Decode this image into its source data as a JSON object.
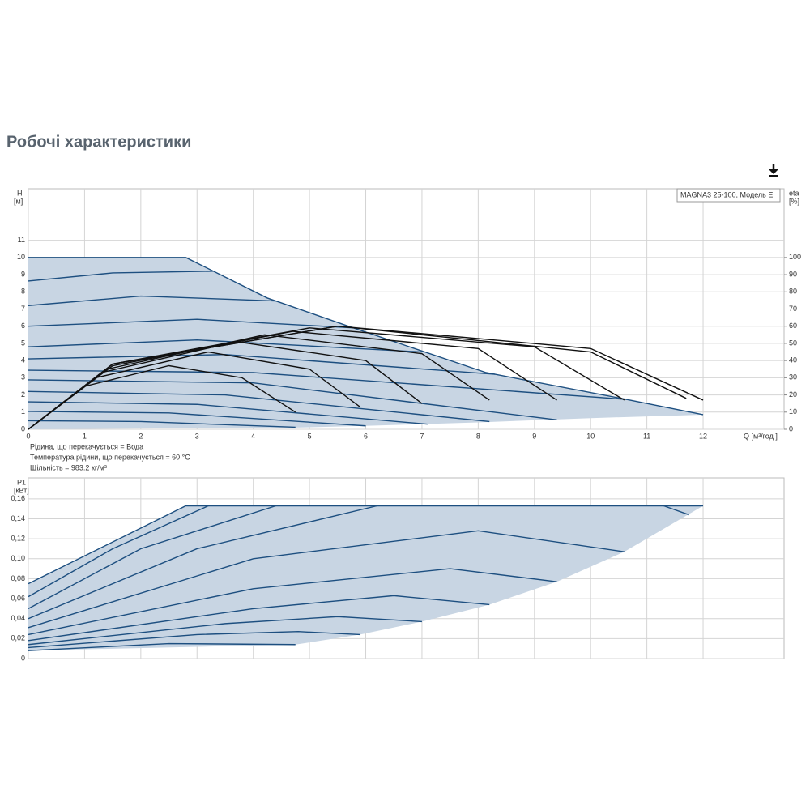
{
  "page_title": "Робочі характеристики",
  "chart_data": [
    {
      "type": "line",
      "title": "MAGNA3 25-100, Модель E",
      "ylabel": "H",
      "ylabel_unit": "[м]",
      "y2label": "eta",
      "y2label_unit": "[%]",
      "xlabel": "Q [м³/год ]",
      "annotations": [
        "Рідина, що перекачується = Вода",
        "Температура рідини, що перекачується = 60 °C",
        "Щільність = 983.2 кг/м³"
      ],
      "xlim": [
        0,
        13.44
      ],
      "ylim": [
        0,
        14
      ],
      "y2lim": [
        0,
        140
      ],
      "xticks": [
        0,
        1,
        2,
        3,
        4,
        5,
        6,
        7,
        8,
        9,
        10,
        11,
        12
      ],
      "yticks": [
        0,
        1,
        2,
        3,
        4,
        5,
        6,
        7,
        8,
        9,
        10,
        11
      ],
      "y2ticks": [
        0,
        10,
        20,
        30,
        40,
        50,
        60,
        70,
        80,
        90,
        100
      ],
      "grid": true,
      "fill_color": "#c8d5e3",
      "edge_color": "#1f5a8c",
      "envelope": {
        "x": [
          0,
          2.8,
          4.25,
          5.69,
          8.14,
          10.56,
          12,
          10,
          8,
          6,
          4.75,
          0
        ],
        "values": [
          10,
          10,
          7.64,
          6.0,
          3.3,
          1.79,
          0.85,
          0.65,
          0.4,
          0.2,
          0.1,
          0
        ]
      },
      "series": [
        {
          "color": "#1d4f80",
          "x": [
            0,
            2.8,
            4.25,
            5.69,
            8.14,
            10.56,
            12
          ],
          "values": [
            10,
            10,
            7.64,
            6.0,
            3.3,
            1.79,
            0.85
          ]
        },
        {
          "color": "#1d4f80",
          "x": [
            0,
            1.5,
            3.3
          ],
          "values": [
            8.63,
            9.1,
            9.2
          ]
        },
        {
          "color": "#1d4f80",
          "x": [
            0,
            2,
            4.4
          ],
          "values": [
            7.2,
            7.75,
            7.47
          ]
        },
        {
          "color": "#1d4f80",
          "x": [
            0,
            3,
            5.8
          ],
          "values": [
            6.0,
            6.4,
            5.9
          ]
        },
        {
          "color": "#1d4f80",
          "x": [
            0,
            3,
            7
          ],
          "values": [
            4.8,
            5.2,
            4.5
          ]
        },
        {
          "color": "#1d4f80",
          "x": [
            0,
            3.5,
            8.3
          ],
          "values": [
            4.1,
            4.35,
            3.2
          ]
        },
        {
          "color": "#1d4f80",
          "x": [
            0,
            4,
            10.6
          ],
          "values": [
            3.44,
            3.3,
            1.75
          ]
        },
        {
          "color": "#1d4f80",
          "x": [
            0,
            4,
            9.4
          ],
          "values": [
            2.88,
            2.7,
            0.55
          ]
        },
        {
          "color": "#1d4f80",
          "x": [
            0,
            3.5,
            8.2
          ],
          "values": [
            2.2,
            2.0,
            0.45
          ]
        },
        {
          "color": "#1d4f80",
          "x": [
            0,
            3,
            7.1
          ],
          "values": [
            1.6,
            1.45,
            0.3
          ]
        },
        {
          "color": "#1d4f80",
          "x": [
            0,
            2.5,
            6.0
          ],
          "values": [
            1.04,
            0.95,
            0.2
          ]
        },
        {
          "color": "#1d4f80",
          "x": [
            0,
            2,
            4.75
          ],
          "values": [
            0.5,
            0.45,
            0.12
          ]
        },
        {
          "color": "#111111",
          "axis": "y2",
          "x": [
            0,
            1,
            2.5,
            3.8,
            4.75
          ],
          "values": [
            0,
            25,
            37,
            30,
            10
          ]
        },
        {
          "color": "#111111",
          "axis": "y2",
          "x": [
            0,
            1.2,
            3.2,
            5,
            5.9
          ],
          "values": [
            0,
            30,
            45,
            35,
            13
          ]
        },
        {
          "color": "#111111",
          "axis": "y2",
          "x": [
            0,
            1.3,
            3.7,
            6,
            7
          ],
          "values": [
            0,
            33,
            51,
            40,
            15
          ]
        },
        {
          "color": "#111111",
          "axis": "y2",
          "x": [
            0,
            1.4,
            4.2,
            7,
            8.2
          ],
          "values": [
            0,
            35,
            55,
            44,
            17
          ]
        },
        {
          "color": "#111111",
          "axis": "y2",
          "x": [
            0,
            1.5,
            4.7,
            8,
            9.4
          ],
          "values": [
            0,
            37,
            57,
            47,
            17
          ]
        },
        {
          "color": "#111111",
          "axis": "y2",
          "x": [
            0,
            1.5,
            5,
            9,
            10.6
          ],
          "values": [
            0,
            38,
            59,
            48,
            17
          ]
        },
        {
          "color": "#111111",
          "axis": "y2",
          "x": [
            0,
            1.5,
            5.5,
            10,
            11.7
          ],
          "values": [
            0,
            38,
            60,
            45,
            18
          ]
        },
        {
          "color": "#111111",
          "axis": "y2",
          "x": [
            0,
            1.5,
            5.5,
            10,
            12
          ],
          "values": [
            0,
            38,
            60,
            47,
            17
          ]
        }
      ]
    },
    {
      "type": "line",
      "ylabel": "P1",
      "ylabel_unit": "[кВт]",
      "xlim": [
        0,
        13.44
      ],
      "ylim": [
        0,
        0.181
      ],
      "xticks": [
        0,
        1,
        2,
        3,
        4,
        5,
        6,
        7,
        8,
        9,
        10,
        11,
        12
      ],
      "yticks": [
        0,
        {
          "value": 0.02,
          "label": "0,02"
        },
        {
          "value": 0.04,
          "label": "0,04"
        },
        {
          "value": 0.06,
          "label": "0,06"
        },
        {
          "value": 0.08,
          "label": "0,08"
        },
        {
          "value": 0.1,
          "label": "0,10"
        },
        {
          "value": 0.12,
          "label": "0,12"
        },
        {
          "value": 0.14,
          "label": "0,14"
        },
        {
          "value": 0.16,
          "label": "0,16"
        }
      ],
      "grid": true,
      "fill_color": "#c8d5e3",
      "edge_color": "#1f5a8c",
      "envelope": {
        "x": [
          0,
          2.8,
          12,
          10.6,
          9.4,
          8.2,
          7.0,
          5.9,
          4.75,
          0
        ],
        "values": [
          0.075,
          0.153,
          0.153,
          0.107,
          0.077,
          0.054,
          0.037,
          0.024,
          0.014,
          0.008
        ]
      },
      "series": [
        {
          "color": "#1d4f80",
          "x": [
            0,
            2.8,
            12
          ],
          "values": [
            0.075,
            0.153,
            0.153
          ]
        },
        {
          "color": "#1d4f80",
          "x": [
            0,
            1.5,
            3.2
          ],
          "values": [
            0.062,
            0.11,
            0.153
          ]
        },
        {
          "color": "#1d4f80",
          "x": [
            0,
            2,
            4.4
          ],
          "values": [
            0.05,
            0.11,
            0.153
          ]
        },
        {
          "color": "#1d4f80",
          "x": [
            0,
            3,
            6.2
          ],
          "values": [
            0.04,
            0.11,
            0.153
          ]
        },
        {
          "color": "#1d4f80",
          "x": [
            0,
            4,
            8,
            10.6
          ],
          "values": [
            0.031,
            0.1,
            0.128,
            0.107
          ]
        },
        {
          "color": "#1d4f80",
          "x": [
            0,
            4,
            7.5,
            9.4
          ],
          "values": [
            0.024,
            0.07,
            0.09,
            0.077
          ]
        },
        {
          "color": "#1d4f80",
          "x": [
            0,
            4,
            6.5,
            8.2
          ],
          "values": [
            0.018,
            0.05,
            0.063,
            0.054
          ]
        },
        {
          "color": "#1d4f80",
          "x": [
            0,
            3.5,
            5.5,
            7.0
          ],
          "values": [
            0.014,
            0.035,
            0.042,
            0.037
          ]
        },
        {
          "color": "#1d4f80",
          "x": [
            0,
            3,
            4.8,
            5.9
          ],
          "values": [
            0.011,
            0.024,
            0.027,
            0.024
          ]
        },
        {
          "color": "#1d4f80",
          "x": [
            0,
            2.5,
            4.75
          ],
          "values": [
            0.008,
            0.015,
            0.014
          ]
        },
        {
          "color": "#1d4f80",
          "x": [
            11.3,
            11.75
          ],
          "values": [
            0.153,
            0.144
          ]
        }
      ]
    }
  ]
}
